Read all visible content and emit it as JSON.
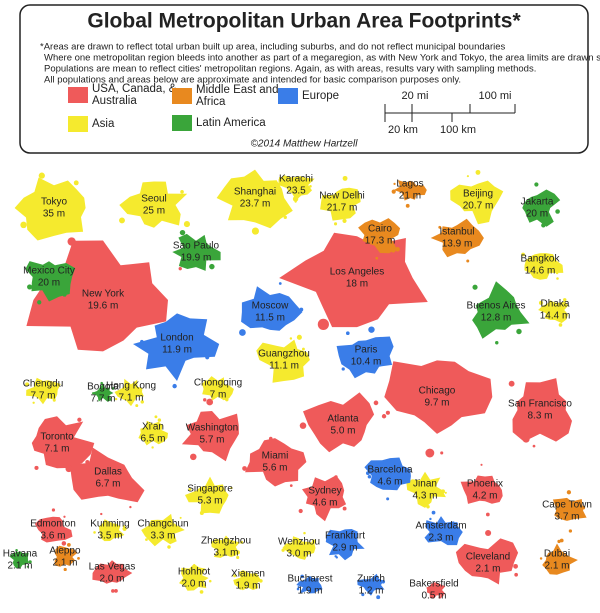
{
  "header": {
    "title": "Global Metropolitan Urban Area Footprints*",
    "notes": [
      "*Areas are drawn to reflect total urban built up area, including suburbs, and do not reflect municipal boundaries",
      "Where one metropolitan region bleeds into another as part of a megaregion, as with New York and Tokyo, the area limits are drawn subjectively",
      "Populations are mean to reflect cities' metropolitan regions. Again, as with areas, results vary with sampling methods.",
      "All populations and areas below are approximate and intended for basic comparison purposes only."
    ],
    "scale": {
      "miles": [
        "20 mi",
        "100 mi"
      ],
      "km": [
        "20 km",
        "100 km"
      ]
    },
    "credit": "©2014 Matthew Hartzell",
    "legend": [
      {
        "label": "USA, Canada, & Australia",
        "color": "#ef5a5a",
        "cities": [
          {
            "name": "New York",
            "population": "19.6 m"
          },
          {
            "name": "Los Angeles",
            "population": "18 m"
          },
          {
            "name": "Chicago",
            "population": "9.7 m"
          },
          {
            "name": "Toronto",
            "population": "7.1 m"
          },
          {
            "name": "Dallas",
            "population": "6.7 m"
          },
          {
            "name": "Washington",
            "population": "5.7 m"
          },
          {
            "name": "Atlanta",
            "population": "5.0 m"
          },
          {
            "name": "Miami",
            "population": "5.6 m"
          },
          {
            "name": "Sydney",
            "population": "4.6 m"
          },
          {
            "name": "Phoenix",
            "population": "4.2 m"
          },
          {
            "name": "San Francisco",
            "population": "8.3 m"
          },
          {
            "name": "Edmonton",
            "population": "3.6 m"
          },
          {
            "name": "Las Vegas",
            "population": "2.0 m"
          },
          {
            "name": "Cleveland",
            "population": "2.1 m"
          },
          {
            "name": "Bakersfield",
            "population": "0.5 m"
          }
        ]
      },
      {
        "label": "Asia",
        "color": "#f5ea2e",
        "cities": [
          {
            "name": "Tokyo",
            "population": "35 m"
          },
          {
            "name": "Seoul",
            "population": "25 m"
          },
          {
            "name": "Shanghai",
            "population": "23.7 m"
          },
          {
            "name": "Karachi",
            "population": "23.5"
          },
          {
            "name": "New Delhi",
            "population": "21.7 m"
          },
          {
            "name": "Beijing",
            "population": "20.7 m"
          },
          {
            "name": "Bangkok",
            "population": "14.6 m"
          },
          {
            "name": "Dhaka",
            "population": "14.4 m"
          },
          {
            "name": "Guangzhou",
            "population": "11.1 m"
          },
          {
            "name": "Chengdu",
            "population": "7.7 m"
          },
          {
            "name": "Hong Kong",
            "population": "7.1 m"
          },
          {
            "name": "Chongqing",
            "population": "7 m"
          },
          {
            "name": "Xi'an",
            "population": "6.5 m"
          },
          {
            "name": "Singapore",
            "population": "5.3 m"
          },
          {
            "name": "Kunming",
            "population": "3.5 m"
          },
          {
            "name": "Changchun",
            "population": "3.3 m"
          },
          {
            "name": "Zhengzhou",
            "population": "3.1 m"
          },
          {
            "name": "Wenzhou",
            "population": "3.0 m"
          },
          {
            "name": "Jinan",
            "population": "4.3 m"
          },
          {
            "name": "Hohhot",
            "population": "2.0 m"
          },
          {
            "name": "Xiamen",
            "population": "1.9 m"
          }
        ]
      },
      {
        "label": "Middle East and Africa",
        "color": "#e8891f",
        "cities": [
          {
            "name": "Lagos",
            "population": "21 m"
          },
          {
            "name": "Cairo",
            "population": "17.3 m"
          },
          {
            "name": "Istanbul",
            "population": "13.9 m"
          },
          {
            "name": "Cape Town",
            "population": "3.7 m"
          },
          {
            "name": "Dubai",
            "population": "2.1 m"
          },
          {
            "name": "Aleppo",
            "population": "2.1 m"
          }
        ]
      },
      {
        "label": "Latin America",
        "color": "#3aa53a",
        "cities": [
          {
            "name": "Sao Paulo",
            "population": "19.9 m"
          },
          {
            "name": "Mexico City",
            "population": "20 m"
          },
          {
            "name": "Buenos Aires",
            "population": "12.8 m"
          },
          {
            "name": "Jakarta",
            "population": "20 m"
          },
          {
            "name": "Bogota",
            "population": "7.7 m"
          },
          {
            "name": "Havana",
            "population": "2.1 m"
          }
        ]
      },
      {
        "label": "Europe",
        "color": "#3a7de8",
        "cities": [
          {
            "name": "London",
            "population": "11.9 m"
          },
          {
            "name": "Moscow",
            "population": "11.5 m"
          },
          {
            "name": "Paris",
            "population": "10.4 m"
          },
          {
            "name": "Barcelona",
            "population": "4.6 m"
          },
          {
            "name": "Frankfurt",
            "population": "2.9 m"
          },
          {
            "name": "Amsterdam",
            "population": "2.3 m"
          },
          {
            "name": "Bucharest",
            "population": "1.9 m"
          },
          {
            "name": "Zurich",
            "population": "1.2 m"
          }
        ]
      }
    ]
  }
}
